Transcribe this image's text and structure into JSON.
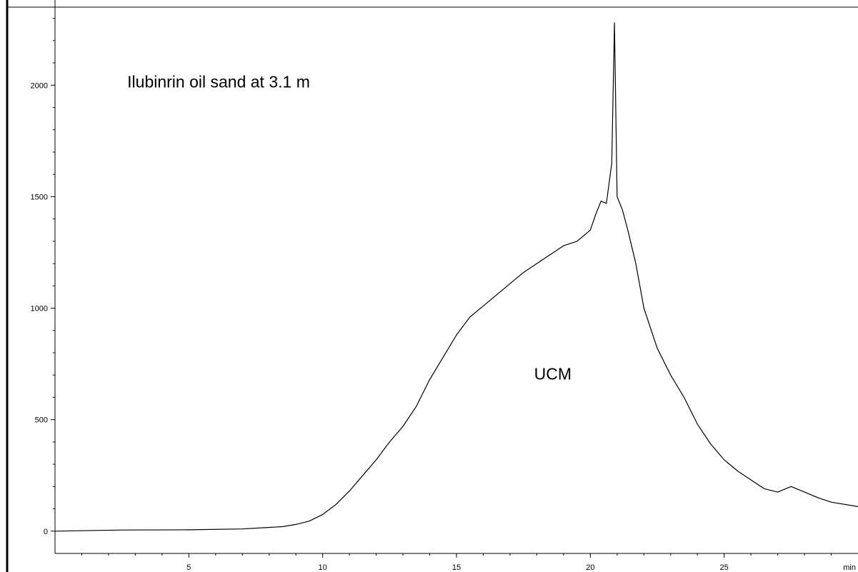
{
  "chart_data": {
    "type": "line",
    "title": "",
    "xlabel": "",
    "ylabel": "",
    "x_unit_label": "min",
    "xlim": [
      0,
      30
    ],
    "ylim": [
      -100,
      2350
    ],
    "x_ticks": [
      5,
      10,
      15,
      20,
      25
    ],
    "y_ticks": [
      0,
      500,
      1000,
      1500,
      2000
    ],
    "grid": false,
    "annotations": [
      {
        "text": "Ilubinrin oil sand at 3.1 m",
        "x": 2.7,
        "y": 1990
      },
      {
        "text": "UCM",
        "x": 17.9,
        "y": 680
      }
    ],
    "series": [
      {
        "x": [
          0.0,
          2.5,
          5.0,
          7.0,
          8.5,
          9.0,
          9.5,
          10.0,
          10.5,
          11.0,
          11.5,
          12.0,
          12.5,
          13.0,
          13.5,
          14.0,
          14.5,
          15.0,
          15.5,
          16.0,
          16.5,
          17.0,
          17.5,
          18.0,
          18.5,
          19.0,
          19.5,
          20.0,
          20.2,
          20.4,
          20.6,
          20.8,
          20.9,
          21.0,
          21.2,
          21.4,
          21.7,
          22.0,
          22.5,
          23.0,
          23.5,
          24.0,
          24.5,
          25.0,
          25.5,
          26.0,
          26.5,
          27.0,
          27.5,
          28.0,
          28.5,
          29.0,
          30.0
        ],
        "y": [
          0,
          5,
          6,
          10,
          20,
          30,
          45,
          75,
          120,
          180,
          250,
          320,
          400,
          470,
          560,
          680,
          780,
          880,
          960,
          1010,
          1060,
          1110,
          1160,
          1200,
          1240,
          1280,
          1300,
          1350,
          1420,
          1480,
          1470,
          1650,
          2280,
          1500,
          1440,
          1350,
          1200,
          1000,
          820,
          700,
          600,
          480,
          390,
          320,
          270,
          230,
          190,
          175,
          200,
          175,
          150,
          130,
          110
        ]
      }
    ]
  }
}
